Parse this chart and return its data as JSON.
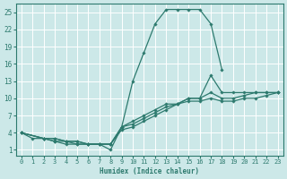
{
  "xlabel": "Humidex (Indice chaleur)",
  "bg_color": "#cce8e8",
  "line_color": "#2d7a6e",
  "grid_color": "#ffffff",
  "xlim": [
    -0.5,
    23.5
  ],
  "ylim": [
    0,
    26.5
  ],
  "xticks": [
    0,
    1,
    2,
    3,
    4,
    5,
    6,
    7,
    8,
    9,
    10,
    11,
    12,
    13,
    14,
    15,
    16,
    17,
    18,
    19,
    20,
    21,
    22,
    23
  ],
  "yticks": [
    1,
    4,
    7,
    10,
    13,
    16,
    19,
    22,
    25
  ],
  "lines": [
    {
      "x": [
        0,
        1,
        2,
        3,
        4,
        5,
        6,
        7,
        8,
        9,
        10,
        11,
        12,
        13,
        14,
        15,
        16,
        17,
        18
      ],
      "y": [
        4,
        3,
        3,
        3,
        2.5,
        2.5,
        2,
        2,
        1,
        5,
        13,
        18,
        23,
        25.5,
        25.5,
        25.5,
        25.5,
        23,
        15
      ]
    },
    {
      "x": [
        0,
        2,
        3,
        4,
        5,
        6,
        7,
        8,
        9,
        10,
        11,
        12,
        13,
        14,
        15,
        16,
        17,
        18,
        19,
        20,
        21,
        22,
        23
      ],
      "y": [
        4,
        3,
        3,
        2.5,
        2.5,
        2,
        2,
        2,
        5,
        6,
        7,
        8,
        9,
        9,
        10,
        10,
        14,
        11,
        11,
        11,
        11,
        11,
        11
      ]
    },
    {
      "x": [
        0,
        2,
        3,
        4,
        5,
        6,
        7,
        8,
        9,
        10,
        11,
        12,
        13,
        14,
        15,
        16,
        17,
        18,
        19,
        20,
        21,
        22,
        23
      ],
      "y": [
        4,
        3,
        2.5,
        2.5,
        2,
        2,
        2,
        2,
        5,
        5.5,
        6.5,
        7.5,
        8.5,
        9,
        10,
        10,
        11,
        10,
        10,
        10.5,
        11,
        11,
        11
      ]
    },
    {
      "x": [
        0,
        2,
        3,
        4,
        5,
        6,
        7,
        8,
        9,
        10,
        11,
        12,
        13,
        14,
        15,
        16,
        17,
        18,
        19,
        20,
        21,
        22,
        23
      ],
      "y": [
        4,
        3,
        2.5,
        2,
        2,
        2,
        2,
        2,
        4.5,
        5,
        6,
        7,
        8,
        9,
        9.5,
        9.5,
        10,
        9.5,
        9.5,
        10,
        10,
        10.5,
        11
      ]
    }
  ]
}
